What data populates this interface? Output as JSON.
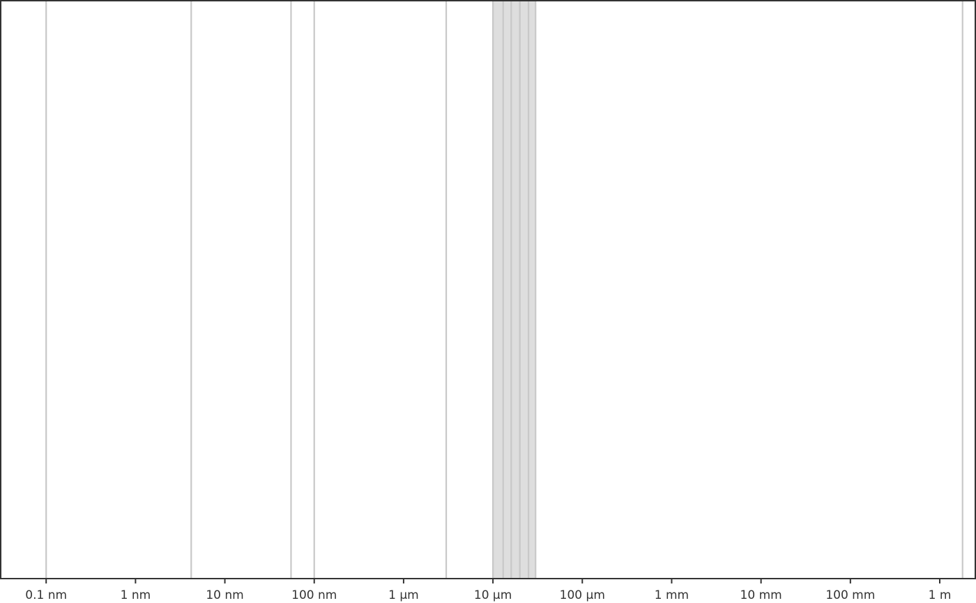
{
  "chart_data": {
    "type": "line",
    "title": "",
    "xlabel": "",
    "ylabel": "",
    "x_scale": "log",
    "x_unit": "m",
    "xlim": [
      3.1e-11,
      2.5
    ],
    "grid": false,
    "x_ticks": [
      {
        "value": 1e-10,
        "label": "0.1 nm"
      },
      {
        "value": 1e-09,
        "label": "1 nm"
      },
      {
        "value": 1e-08,
        "label": "10 nm"
      },
      {
        "value": 1e-07,
        "label": "100 nm"
      },
      {
        "value": 1e-06,
        "label": "1 µm"
      },
      {
        "value": 1e-05,
        "label": "10 µm"
      },
      {
        "value": 0.0001,
        "label": "100 µm"
      },
      {
        "value": 0.001,
        "label": "1 mm"
      },
      {
        "value": 0.01,
        "label": "10 mm"
      },
      {
        "value": 0.1,
        "label": "100 mm"
      },
      {
        "value": 1,
        "label": "1 m"
      }
    ],
    "vertical_lines": [
      1e-10,
      4.2e-09,
      5.5e-08,
      1e-07,
      3e-06,
      1e-05,
      1.3e-05,
      1.6e-05,
      2e-05,
      2.5e-05,
      3e-05,
      1.8
    ],
    "shaded_bands": [
      {
        "x_start": 1e-05,
        "x_end": 3e-05
      }
    ],
    "colors": {
      "line": "#c8c8c8",
      "band": "#dedede",
      "band_edge": "#b4b4b4",
      "axis": "#333333"
    }
  }
}
